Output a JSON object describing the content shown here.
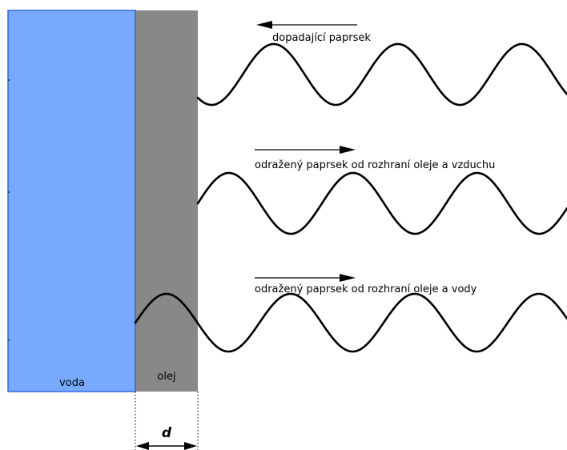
{
  "diagram": {
    "water_label": "voda",
    "oil_label": "olej",
    "incident_label": "dopadající paprsek",
    "reflect_air_label": "odražený paprsek od rozhraní oleje a vzduchu",
    "reflect_water_label": "odražený paprsek od rozhraní oleje a vody",
    "thickness_label": "d",
    "colors": {
      "water": "#77aaff",
      "water_border": "#3366dd",
      "water_text": "#1144aa",
      "oil": "#888888",
      "oil_text": "#cccccc",
      "wave": "#000000"
    }
  }
}
